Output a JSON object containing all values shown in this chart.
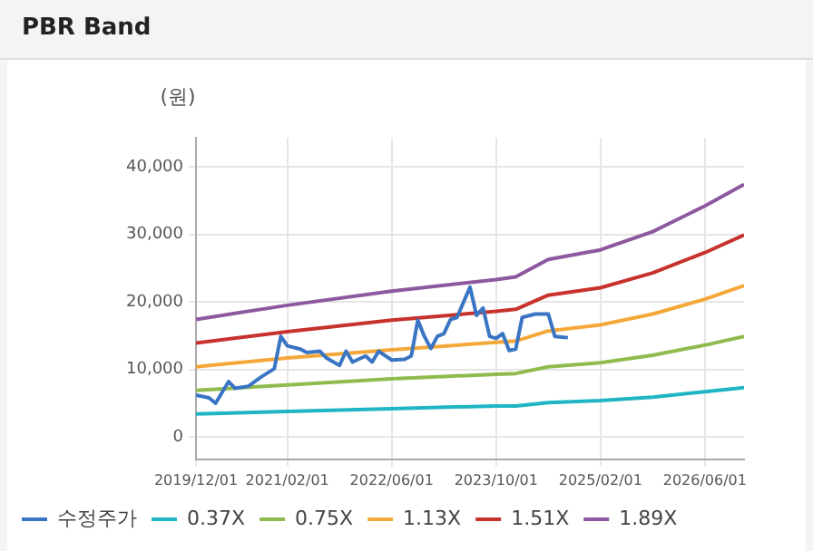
{
  "chart_data": {
    "type": "line",
    "title": "PBR Band",
    "ylabel": "(원)",
    "xlim": [
      "2019-12",
      "2026-12"
    ],
    "xticks": [
      {
        "value": "2019-12",
        "label": "2019/12/01"
      },
      {
        "value": "2021-02",
        "label": "2021/02/01"
      },
      {
        "value": "2022-06",
        "label": "2022/06/01"
      },
      {
        "value": "2023-10",
        "label": "2023/10/01"
      },
      {
        "value": "2025-02",
        "label": "2025/02/01"
      },
      {
        "value": "2026-06",
        "label": "2026/06/01"
      }
    ],
    "ylim": [
      -3300,
      44300
    ],
    "yticks": [
      0,
      {
        "value": 10000,
        "label": "10,000"
      },
      {
        "value": 20000,
        "label": "20,000"
      },
      {
        "value": 30000,
        "label": "30,000"
      },
      {
        "value": 40000,
        "label": "40,000"
      }
    ],
    "grid": true,
    "legend": "bottom",
    "marker": "none",
    "line_style": "solid",
    "series": [
      {
        "name": "수정주가",
        "color": "#3a75c4",
        "x": [
          "2019-12",
          "2020-02",
          "2020-03",
          "2020-05",
          "2020-06",
          "2020-08",
          "2020-10",
          "2020-12",
          "2021-01",
          "2021-02",
          "2021-04",
          "2021-05",
          "2021-07",
          "2021-08",
          "2021-10",
          "2021-11",
          "2021-12",
          "2022-02",
          "2022-03",
          "2022-04",
          "2022-06",
          "2022-08",
          "2022-09",
          "2022-10",
          "2022-11",
          "2022-12",
          "2023-01",
          "2023-02",
          "2023-03",
          "2023-04",
          "2023-06",
          "2023-07",
          "2023-08",
          "2023-09",
          "2023-10",
          "2023-11",
          "2023-12",
          "2024-01",
          "2024-02",
          "2024-04",
          "2024-06",
          "2024-07",
          "2024-09"
        ],
        "values": [
          6200,
          5800,
          5000,
          8200,
          7200,
          7500,
          8900,
          10100,
          14900,
          13500,
          13000,
          12500,
          12700,
          11700,
          10600,
          12700,
          11100,
          12000,
          11100,
          12700,
          11400,
          11500,
          12000,
          17300,
          14900,
          13100,
          14900,
          15300,
          17400,
          17700,
          22200,
          18000,
          19100,
          14900,
          14600,
          15300,
          12800,
          13000,
          17700,
          18200,
          18200,
          14900,
          14700
        ]
      },
      {
        "name": "0.37X",
        "color": "#1fb5c4",
        "x": [
          "2019-12",
          "2021-02",
          "2022-06",
          "2023-10",
          "2024-01",
          "2024-06",
          "2025-02",
          "2025-10",
          "2026-06",
          "2026-12"
        ],
        "values": [
          3400,
          3800,
          4200,
          4600,
          4600,
          5100,
          5400,
          5900,
          6700,
          7300
        ]
      },
      {
        "name": "0.75X",
        "color": "#8fbb4e",
        "x": [
          "2019-12",
          "2021-02",
          "2022-06",
          "2023-10",
          "2024-01",
          "2024-06",
          "2025-02",
          "2025-10",
          "2026-06",
          "2026-12"
        ],
        "values": [
          6900,
          7700,
          8600,
          9300,
          9400,
          10400,
          11000,
          12100,
          13600,
          14900
        ]
      },
      {
        "name": "1.13X",
        "color": "#f5a83a",
        "x": [
          "2019-12",
          "2021-02",
          "2022-06",
          "2023-10",
          "2024-01",
          "2024-06",
          "2025-02",
          "2025-10",
          "2026-06",
          "2026-12"
        ],
        "values": [
          10400,
          11700,
          12900,
          14000,
          14200,
          15700,
          16600,
          18200,
          20400,
          22400
        ]
      },
      {
        "name": "1.51X",
        "color": "#c8322d",
        "x": [
          "2019-12",
          "2021-02",
          "2022-06",
          "2023-10",
          "2024-01",
          "2024-06",
          "2025-02",
          "2025-10",
          "2026-06",
          "2026-12"
        ],
        "values": [
          13900,
          15600,
          17300,
          18600,
          18900,
          21000,
          22100,
          24300,
          27300,
          29900
        ]
      },
      {
        "name": "1.89X",
        "color": "#8e58a0",
        "x": [
          "2019-12",
          "2021-02",
          "2022-06",
          "2023-10",
          "2024-01",
          "2024-06",
          "2025-02",
          "2025-10",
          "2026-06",
          "2026-12"
        ],
        "values": [
          17400,
          19500,
          21600,
          23300,
          23700,
          26300,
          27700,
          30400,
          34200,
          37400
        ]
      }
    ]
  }
}
